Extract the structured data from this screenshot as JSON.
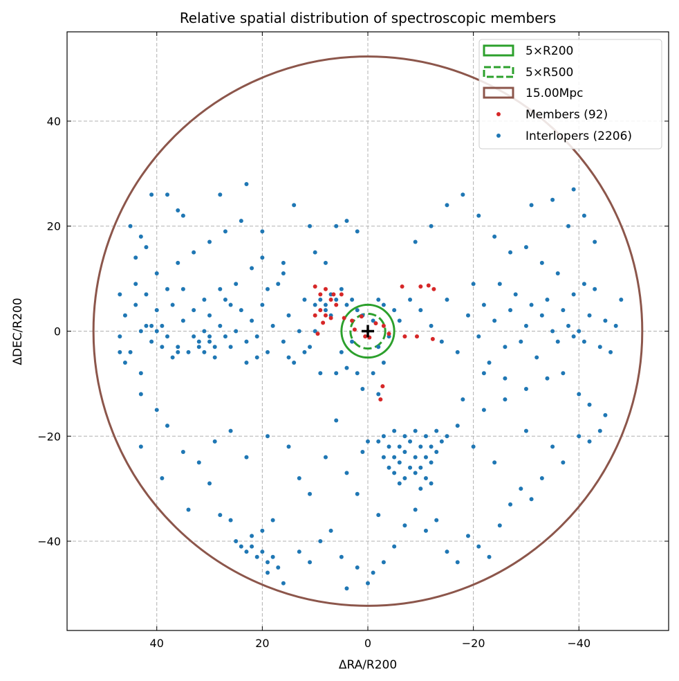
{
  "chart_data": {
    "type": "scatter",
    "title": "Relative spatial distribution of spectroscopic members",
    "xlabel": "ΔRA/R200",
    "ylabel": "ΔDEC/R200",
    "xlim": [
      57,
      -57
    ],
    "ylim": [
      -57,
      57
    ],
    "x_inverted": true,
    "grid": true,
    "legend_placement": "top-right",
    "xticks": [
      40,
      20,
      0,
      -20,
      -40
    ],
    "xtick_labels": [
      "40",
      "20",
      "0",
      "−20",
      "−40"
    ],
    "yticks": [
      40,
      20,
      0,
      -20,
      -40
    ],
    "ytick_labels": [
      "40",
      "20",
      "0",
      "−20",
      "−40"
    ],
    "center_marker": {
      "x": 0,
      "y": 0,
      "symbol": "+",
      "color": "#000000"
    },
    "circles": [
      {
        "name": "5×R200",
        "radius": 5,
        "style": "solid",
        "color": "#2ca02c"
      },
      {
        "name": "5×R500",
        "radius": 3.3,
        "style": "dashed",
        "color": "#2ca02c"
      },
      {
        "name": "15.00Mpc",
        "radius": 52,
        "style": "solid",
        "color": "#8c564b"
      }
    ],
    "series": [
      {
        "name": "Members (92)",
        "color": "#d62728",
        "points": [
          [
            9,
            7
          ],
          [
            8,
            8
          ],
          [
            7,
            6
          ],
          [
            9,
            4
          ],
          [
            8,
            3
          ],
          [
            6,
            5
          ],
          [
            7,
            2.5
          ],
          [
            10,
            3
          ],
          [
            5,
            7
          ],
          [
            6.5,
            7
          ],
          [
            10,
            8.5
          ],
          [
            9.5,
            -0.5
          ],
          [
            3,
            2
          ],
          [
            2.5,
            0.3
          ],
          [
            1.2,
            2.8
          ],
          [
            0.5,
            -1
          ],
          [
            -0.3,
            -1.2
          ],
          [
            -1.5,
            1.5
          ],
          [
            -4,
            -0.5
          ],
          [
            -6.5,
            8.5
          ],
          [
            -10,
            8.5
          ],
          [
            -11.5,
            8.7
          ],
          [
            -12.5,
            8
          ],
          [
            -9.3,
            -1
          ],
          [
            -12.3,
            -1.5
          ],
          [
            -2.8,
            -10.5
          ],
          [
            -2.4,
            -13
          ],
          [
            -7,
            -1
          ],
          [
            -3,
            1
          ],
          [
            8.5,
            1.6
          ],
          [
            4.5,
            2.5
          ]
        ]
      },
      {
        "name": "Interlopers (2206)",
        "color": "#1f77b4",
        "points": [
          [
            47,
            7
          ],
          [
            46,
            3
          ],
          [
            47,
            -1
          ],
          [
            45,
            -4
          ],
          [
            44,
            5
          ],
          [
            43,
            0
          ],
          [
            42,
            1
          ],
          [
            41,
            -2
          ],
          [
            40,
            0
          ],
          [
            39,
            1
          ],
          [
            38,
            -1
          ],
          [
            40,
            4
          ],
          [
            37,
            5
          ],
          [
            36,
            -3
          ],
          [
            35,
            2
          ],
          [
            34,
            -4
          ],
          [
            33,
            -1
          ],
          [
            32,
            -3
          ],
          [
            31,
            0
          ],
          [
            30,
            -2
          ],
          [
            30,
            3
          ],
          [
            29,
            -5
          ],
          [
            28,
            1
          ],
          [
            27,
            6
          ],
          [
            26,
            -3
          ],
          [
            25,
            0
          ],
          [
            24,
            4
          ],
          [
            23,
            -6
          ],
          [
            22,
            2
          ],
          [
            21,
            -1
          ],
          [
            20,
            5
          ],
          [
            19,
            -4
          ],
          [
            18,
            1
          ],
          [
            17,
            9
          ],
          [
            16,
            -2
          ],
          [
            15,
            3
          ],
          [
            14,
            -6
          ],
          [
            13,
            0
          ],
          [
            12,
            6
          ],
          [
            11,
            -3
          ],
          [
            44,
            9
          ],
          [
            42,
            7
          ],
          [
            38,
            8
          ],
          [
            35,
            8
          ],
          [
            31,
            6
          ],
          [
            28,
            8
          ],
          [
            25,
            9
          ],
          [
            33,
            4
          ],
          [
            29,
            -3
          ],
          [
            31,
            -4
          ],
          [
            32,
            -2
          ],
          [
            30,
            -1
          ],
          [
            36,
            -4
          ],
          [
            37,
            -5
          ],
          [
            41,
            1
          ],
          [
            39,
            -3
          ],
          [
            47,
            -4
          ],
          [
            46,
            -6
          ],
          [
            43,
            -8
          ],
          [
            21,
            -5
          ],
          [
            19,
            8
          ],
          [
            23,
            -2
          ],
          [
            26,
            5
          ],
          [
            27,
            -1
          ],
          [
            15,
            -5
          ],
          [
            16,
            11
          ],
          [
            16,
            13
          ],
          [
            20,
            14
          ],
          [
            22,
            12
          ],
          [
            44,
            14
          ],
          [
            42,
            16
          ],
          [
            45,
            20
          ],
          [
            43,
            18
          ],
          [
            40,
            11
          ],
          [
            36,
            13
          ],
          [
            33,
            15
          ],
          [
            30,
            17
          ],
          [
            27,
            19
          ],
          [
            24,
            21
          ],
          [
            36,
            23
          ],
          [
            41,
            26
          ],
          [
            38,
            26
          ],
          [
            35,
            22
          ],
          [
            28,
            26
          ],
          [
            23,
            28
          ],
          [
            20,
            19
          ],
          [
            14,
            24
          ],
          [
            11,
            20
          ],
          [
            10,
            15
          ],
          [
            8,
            13
          ],
          [
            6,
            20
          ],
          [
            4,
            21
          ],
          [
            2,
            19
          ],
          [
            9,
            6
          ],
          [
            8,
            5
          ],
          [
            7,
            7
          ],
          [
            6,
            6
          ],
          [
            8,
            4
          ],
          [
            10,
            5
          ],
          [
            7,
            3
          ],
          [
            5,
            8
          ],
          [
            4,
            5
          ],
          [
            3,
            6
          ],
          [
            2,
            4
          ],
          [
            1,
            3
          ],
          [
            -1,
            2
          ],
          [
            -2,
            6
          ],
          [
            -3,
            5
          ],
          [
            -5,
            4
          ],
          [
            -6,
            2
          ],
          [
            -4,
            -1
          ],
          [
            -2,
            -3
          ],
          [
            3,
            -2
          ],
          [
            5,
            -4
          ],
          [
            4,
            -7
          ],
          [
            6,
            -8
          ],
          [
            9,
            -8
          ],
          [
            12,
            -4
          ],
          [
            10,
            0
          ],
          [
            2,
            -8
          ],
          [
            -1,
            -8
          ],
          [
            -2,
            -12
          ],
          [
            1,
            -11
          ],
          [
            -3,
            -6
          ],
          [
            -8,
            6
          ],
          [
            -10,
            4
          ],
          [
            -12,
            1
          ],
          [
            -14,
            -2
          ],
          [
            -15,
            6
          ],
          [
            -17,
            -4
          ],
          [
            -19,
            3
          ],
          [
            -20,
            9
          ],
          [
            -21,
            -1
          ],
          [
            -22,
            5
          ],
          [
            -23,
            -6
          ],
          [
            -24,
            2
          ],
          [
            -25,
            9
          ],
          [
            -26,
            -3
          ],
          [
            -27,
            4
          ],
          [
            -28,
            7
          ],
          [
            -29,
            -2
          ],
          [
            -30,
            1
          ],
          [
            -31,
            5
          ],
          [
            -32,
            -5
          ],
          [
            -33,
            3
          ],
          [
            -34,
            6
          ],
          [
            -35,
            0
          ],
          [
            -36,
            -2
          ],
          [
            -37,
            4
          ],
          [
            -38,
            1
          ],
          [
            -39,
            -1
          ],
          [
            -40,
            0
          ],
          [
            -41,
            -2
          ],
          [
            -42,
            3
          ],
          [
            -43,
            8
          ],
          [
            -44,
            -3
          ],
          [
            -45,
            2
          ],
          [
            -46,
            -4
          ],
          [
            -47,
            1
          ],
          [
            -48,
            6
          ],
          [
            -41,
            9
          ],
          [
            -39,
            7
          ],
          [
            -36,
            11
          ],
          [
            -33,
            13
          ],
          [
            -30,
            16
          ],
          [
            -27,
            15
          ],
          [
            -24,
            18
          ],
          [
            -21,
            22
          ],
          [
            -18,
            26
          ],
          [
            -15,
            24
          ],
          [
            -12,
            20
          ],
          [
            -9,
            17
          ],
          [
            -31,
            24
          ],
          [
            -35,
            25
          ],
          [
            -39,
            27
          ],
          [
            -41,
            22
          ],
          [
            -43,
            17
          ],
          [
            -38,
            20
          ],
          [
            -34,
            -9
          ],
          [
            -37,
            -8
          ],
          [
            -40,
            -12
          ],
          [
            -42,
            -14
          ],
          [
            -45,
            -16
          ],
          [
            -30,
            -11
          ],
          [
            -26,
            -9
          ],
          [
            -22,
            -8
          ],
          [
            -18,
            -13
          ],
          [
            -3,
            -20
          ],
          [
            -5,
            -19
          ],
          [
            -7,
            -20
          ],
          [
            -9,
            -19
          ],
          [
            -11,
            -20
          ],
          [
            -13,
            -19
          ],
          [
            -14,
            -21
          ],
          [
            -4,
            -22
          ],
          [
            -6,
            -22
          ],
          [
            -8,
            -21
          ],
          [
            -10,
            -22
          ],
          [
            -12,
            -22
          ],
          [
            -3,
            -24
          ],
          [
            -5,
            -24
          ],
          [
            -7,
            -23
          ],
          [
            -9,
            -24
          ],
          [
            -11,
            -24
          ],
          [
            -13,
            -23
          ],
          [
            -4,
            -26
          ],
          [
            -6,
            -25
          ],
          [
            -8,
            -26
          ],
          [
            -10,
            -26
          ],
          [
            -12,
            -25
          ],
          [
            -5,
            -27
          ],
          [
            -7,
            -28
          ],
          [
            -9,
            -27
          ],
          [
            -11,
            -28
          ],
          [
            -10,
            -30
          ],
          [
            -12,
            -29
          ],
          [
            -6,
            -29
          ],
          [
            -15,
            -20
          ],
          [
            -2,
            -21
          ],
          [
            0,
            -21
          ],
          [
            1,
            -23
          ],
          [
            25,
            -40
          ],
          [
            24,
            -41
          ],
          [
            23,
            -42
          ],
          [
            22,
            -41
          ],
          [
            21,
            -43
          ],
          [
            20,
            -42
          ],
          [
            19,
            -44
          ],
          [
            18,
            -43
          ],
          [
            17,
            -45
          ],
          [
            22,
            -39
          ],
          [
            20,
            -38
          ],
          [
            18,
            -36
          ],
          [
            26,
            -36
          ],
          [
            28,
            -35
          ],
          [
            19,
            -46
          ],
          [
            16,
            -48
          ],
          [
            13,
            -42
          ],
          [
            11,
            -44
          ],
          [
            9,
            -40
          ],
          [
            7,
            -38
          ],
          [
            5,
            -43
          ],
          [
            2,
            -45
          ],
          [
            0,
            -48
          ],
          [
            -1,
            -46
          ],
          [
            4,
            -49
          ],
          [
            -3,
            -44
          ],
          [
            -5,
            -41
          ],
          [
            -7,
            -37
          ],
          [
            -9,
            -34
          ],
          [
            -11,
            -38
          ],
          [
            -13,
            -36
          ],
          [
            -15,
            -42
          ],
          [
            -17,
            -44
          ],
          [
            -19,
            -39
          ],
          [
            -21,
            -41
          ],
          [
            -23,
            -43
          ],
          [
            -25,
            -37
          ],
          [
            -27,
            -33
          ],
          [
            -29,
            -30
          ],
          [
            -31,
            -32
          ],
          [
            -33,
            -28
          ],
          [
            -35,
            -22
          ],
          [
            -37,
            -25
          ],
          [
            -40,
            -20
          ],
          [
            -42,
            -21
          ],
          [
            -44,
            -19
          ],
          [
            -24,
            -25
          ],
          [
            -20,
            -22
          ],
          [
            -17,
            -18
          ],
          [
            -22,
            -15
          ],
          [
            -26,
            -13
          ],
          [
            -30,
            -19
          ],
          [
            30,
            -29
          ],
          [
            32,
            -25
          ],
          [
            35,
            -23
          ],
          [
            38,
            -18
          ],
          [
            40,
            -15
          ],
          [
            43,
            -12
          ],
          [
            43,
            -22
          ],
          [
            39,
            -28
          ],
          [
            34,
            -34
          ],
          [
            29,
            -21
          ],
          [
            26,
            -19
          ],
          [
            23,
            -24
          ],
          [
            19,
            -20
          ],
          [
            15,
            -22
          ],
          [
            13,
            -28
          ],
          [
            11,
            -31
          ],
          [
            8,
            -24
          ],
          [
            6,
            -17
          ],
          [
            4,
            -27
          ],
          [
            2,
            -31
          ],
          [
            -2,
            -35
          ]
        ]
      }
    ],
    "legend": [
      "5×R200",
      "5×R500",
      "15.00Mpc",
      "Members (92)",
      "Interlopers (2206)"
    ]
  }
}
